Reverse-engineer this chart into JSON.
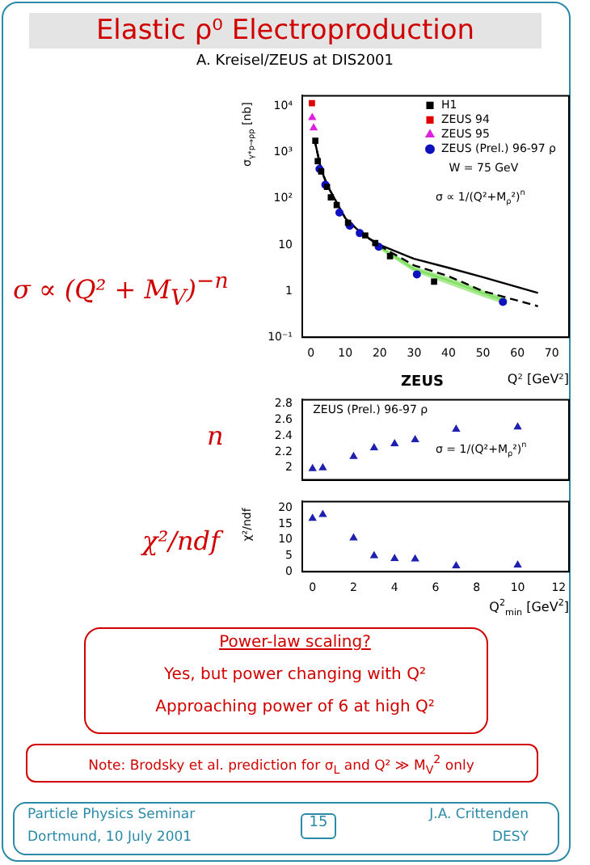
{
  "chart_data": [
    {
      "type": "other",
      "title": "Elastic ρ⁰ Electroproduction",
      "subtitle": "A. Kreisel/ZEUS at DIS2001"
    },
    {
      "type": "scatter",
      "subtitle": "σ ∝ (Q² + M$_{V}$)$^{−n}$",
      "ylabel": "σ$_{γ*p→ρp}$ [nb]",
      "xlabel": "Q² [GeV²]",
      "log": "y",
      "legend": "top right",
      "xlim": [
        -2.5,
        75
      ],
      "xticks": [
        0,
        10,
        20,
        30,
        40,
        50,
        60,
        70
      ],
      "ylim": [
        0.1,
        17000
      ],
      "yticks": [
        {
          "value": 0.1,
          "label": "10⁻¹"
        },
        1,
        10,
        {
          "value": 100,
          "label": "10²"
        },
        {
          "value": 1000,
          "label": "10³"
        },
        {
          "value": 10000,
          "label": "10⁴"
        }
      ],
      "annotations": [
        "W = 75 GeV",
        "σ ∝ 1/(Q²+M$_{ρ}$²)$^{n}$",
        "ZEUS"
      ],
      "series": [
        {
          "name": "H1",
          "color": "#000000",
          "marker": "square",
          "x": [
            1.3,
            2,
            3,
            4.7,
            5.8,
            7.5,
            10.8,
            15.8,
            18.7,
            23,
            35.8
          ],
          "values": [
            1800,
            650,
            390,
            180,
            107,
            73,
            30,
            16,
            11,
            5.7,
            1.6
          ]
        },
        {
          "name": "ZEUS 94",
          "color": "#e00000",
          "marker": "square",
          "x": [
            0.3
          ],
          "values": [
            11700
          ]
        },
        {
          "name": "ZEUS 95",
          "color": "#e020e0",
          "marker": "triangle",
          "x": [
            0.4,
            0.8
          ],
          "values": [
            5700,
            3400
          ]
        },
        {
          "name": "ZEUS (Prel.) 96-97 ρ",
          "color": "#1010c0",
          "marker": "circle",
          "x": [
            2.5,
            4.2,
            8.3,
            11.3,
            14.2,
            19.7,
            30.8,
            55.8
          ],
          "values": [
            440,
            200,
            50,
            26,
            18,
            9.1,
            2.3,
            0.58
          ]
        },
        {
          "type": "line",
          "color": "#000000",
          "marker": "none",
          "line_style": "solid",
          "x": [
            1,
            3,
            5,
            10,
            15,
            20,
            30,
            40,
            50,
            66
          ],
          "values": [
            2000,
            420,
            180,
            38,
            17,
            10,
            5,
            3.2,
            2,
            0.91
          ]
        },
        {
          "type": "line",
          "color": "#000000",
          "marker": "none",
          "line_style": "dashed",
          "x": [
            1,
            3,
            5,
            10,
            15,
            20,
            30,
            40,
            50,
            66
          ],
          "values": [
            2000,
            420,
            180,
            38,
            17,
            9.5,
            3.6,
            2.1,
            1.0,
            0.47
          ]
        },
        {
          "type": "line",
          "color": "#80e060",
          "marker": "none",
          "line_style": "solid",
          "x": [
            20,
            30,
            40,
            50,
            57
          ],
          "values": [
            9,
            3,
            1.7,
            0.9,
            0.6
          ],
          "lower": [
            8,
            2.6,
            1.4,
            0.75,
            0.5
          ],
          "upper": [
            10,
            3.4,
            2.0,
            1.05,
            0.7
          ]
        }
      ]
    },
    {
      "type": "scatter",
      "subtitle": "n",
      "tick_labels": "y",
      "xlim": [
        -0.5,
        12.5
      ],
      "xticks": [
        0,
        2,
        4,
        6,
        8,
        10,
        12
      ],
      "ylim": [
        1.85,
        2.85
      ],
      "yticks": [
        2,
        2.2,
        2.4,
        2.6,
        2.8
      ],
      "annotations": [
        "ZEUS (Prel.) 96-97 ρ",
        "σ = 1/(Q²+M$_{ρ}$²)$^{n}$"
      ],
      "series": [
        {
          "color": "#2020b0",
          "marker": "triangle",
          "x": [
            0,
            0.5,
            2,
            3,
            4,
            5,
            7,
            10
          ],
          "values": [
            1.99,
            2.0,
            2.14,
            2.25,
            2.3,
            2.35,
            2.48,
            2.51
          ]
        }
      ]
    },
    {
      "type": "scatter",
      "subtitle": "χ²/ndf",
      "ylabel": "χ²/ndf",
      "xlabel": "Q$^{2}$$_{min}$ [GeV$^{2}$]",
      "xlim": [
        -0.5,
        12.5
      ],
      "xticks": [
        0,
        2,
        4,
        6,
        8,
        10,
        12
      ],
      "ylim": [
        0,
        22
      ],
      "yticks": [
        0,
        5,
        10,
        15,
        20
      ],
      "series": [
        {
          "color": "#2020b0",
          "marker": "triangle",
          "x": [
            0,
            0.5,
            2,
            3,
            4,
            5,
            7,
            10
          ],
          "values": [
            16.7,
            17.9,
            10.6,
            5,
            4.1,
            4,
            1.8,
            2.1
          ]
        }
      ]
    },
    {
      "type": "other",
      "annotations": [
        "Power-law scaling?",
        "Yes, but power changing with Q²",
        "Approaching power of 6 at high Q²",
        "Note: Brodsky et al. prediction for σ$_{L}$ and Q² ≫ M$_{V}$$^{2}$ only",
        "Particle Physics Seminar",
        "Dortmund, 10 July 2001",
        "15",
        "J.A. Crittenden",
        "DESY"
      ]
    }
  ]
}
